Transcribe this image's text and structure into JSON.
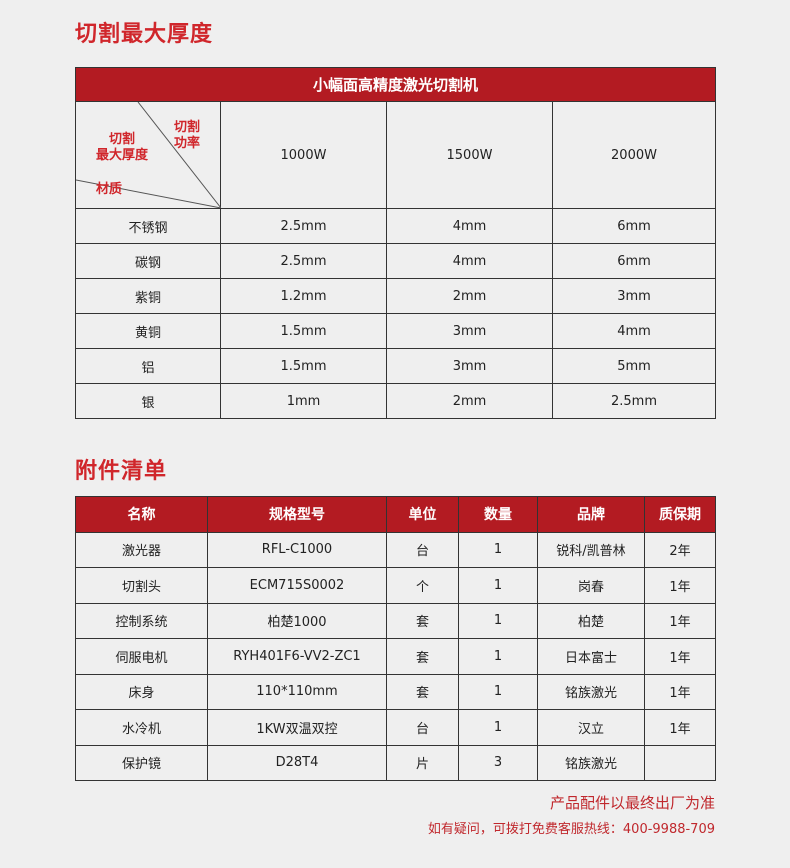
{
  "section1": {
    "title": "切割最大厚度",
    "table_title": "小幅面高精度激光切割机",
    "corner": {
      "power": "切割\n功率",
      "thickness": "切割\n最大厚度",
      "material": "材质"
    },
    "powers": [
      "1000W",
      "1500W",
      "2000W"
    ],
    "rows": [
      {
        "material": "不锈钢",
        "values": [
          "2.5mm",
          "4mm",
          "6mm"
        ]
      },
      {
        "material": "碳钢",
        "values": [
          "2.5mm",
          "4mm",
          "6mm"
        ]
      },
      {
        "material": "紫铜",
        "values": [
          "1.2mm",
          "2mm",
          "3mm"
        ]
      },
      {
        "material": "黄铜",
        "values": [
          "1.5mm",
          "3mm",
          "4mm"
        ]
      },
      {
        "material": "铝",
        "values": [
          "1.5mm",
          "3mm",
          "5mm"
        ]
      },
      {
        "material": "银",
        "values": [
          "1mm",
          "2mm",
          "2.5mm"
        ]
      }
    ]
  },
  "section2": {
    "title": "附件清单",
    "headers": [
      "名称",
      "规格型号",
      "单位",
      "数量",
      "品牌",
      "质保期"
    ],
    "rows": [
      [
        "激光器",
        "RFL-C1000",
        "台",
        "1",
        "锐科/凯普林",
        "2年"
      ],
      [
        "切割头",
        "ECM715S0002",
        "个",
        "1",
        "岗春",
        "1年"
      ],
      [
        "控制系统",
        "柏楚1000",
        "套",
        "1",
        "柏楚",
        "1年"
      ],
      [
        "伺服电机",
        "RYH401F6-VV2-ZC1",
        "套",
        "1",
        "日本富士",
        "1年"
      ],
      [
        "床身",
        "110*110mm",
        "套",
        "1",
        "铭族激光",
        "1年"
      ],
      [
        "水冷机",
        "1KW双温双控",
        "台",
        "1",
        "汉立",
        "1年"
      ],
      [
        "保护镜",
        "D28T4",
        "片",
        "3",
        "铭族激光",
        ""
      ]
    ]
  },
  "notes": {
    "final": "产品配件以最终出厂为准",
    "hotline": "如有疑问，可拨打免费客服热线：400-9988-709"
  },
  "colors": {
    "accent": "#b31b22",
    "title_red": "#d0262b"
  }
}
